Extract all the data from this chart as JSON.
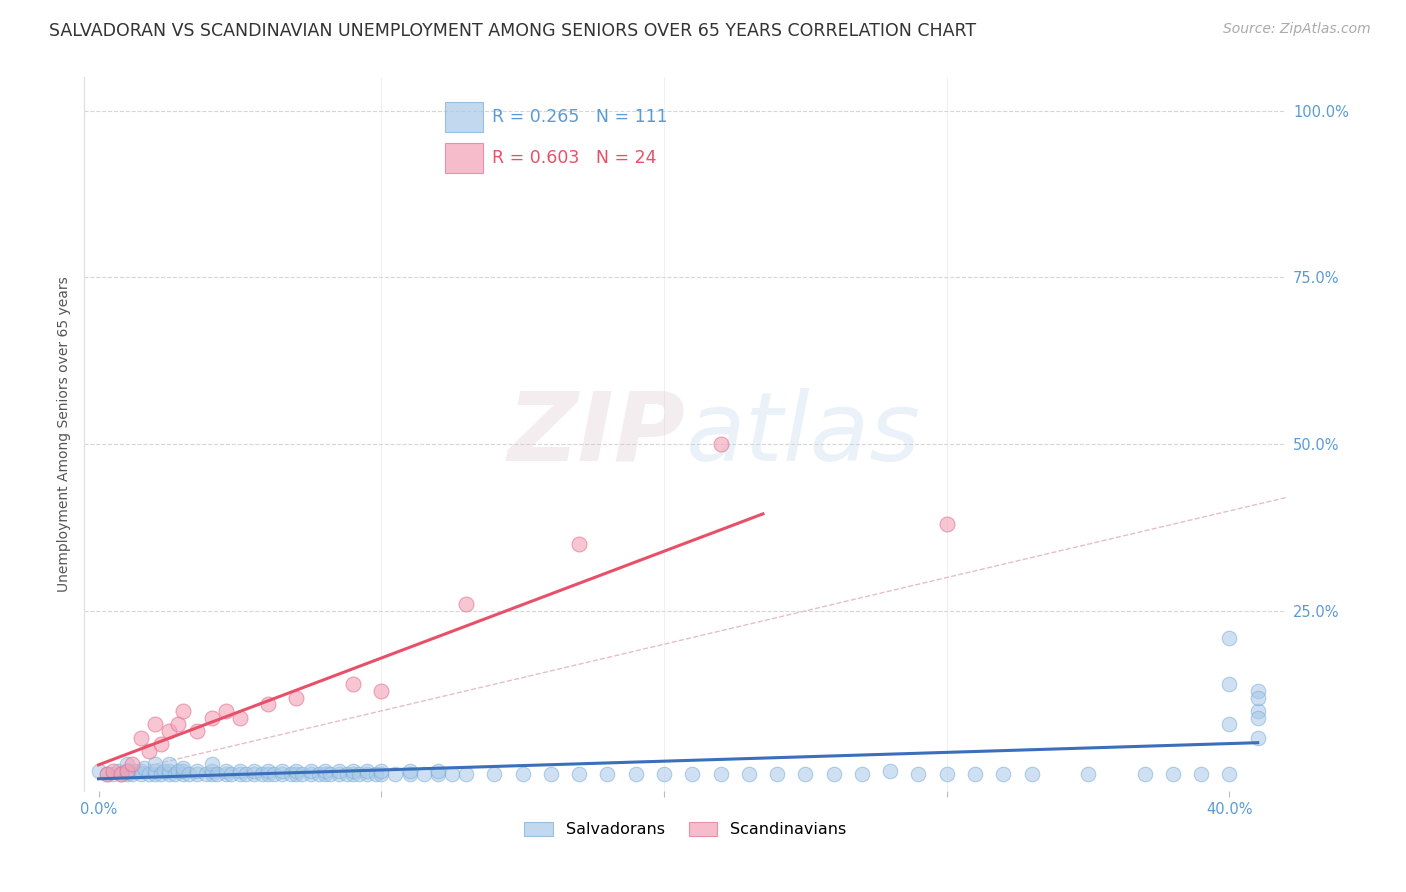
{
  "title": "SALVADORAN VS SCANDINAVIAN UNEMPLOYMENT AMONG SENIORS OVER 65 YEARS CORRELATION CHART",
  "source": "Source: ZipAtlas.com",
  "ylabel": "Unemployment Among Seniors over 65 years",
  "salvadoran_R": 0.265,
  "salvadoran_N": 111,
  "scandinavian_R": 0.603,
  "scandinavian_N": 24,
  "salvadoran_color": "#a8c8e8",
  "scandinavian_color": "#f4a0b5",
  "salvadoran_line_color": "#3a6fbb",
  "scandinavian_line_color": "#e8506a",
  "diagonal_color": "#e0b8c8",
  "background_color": "#ffffff",
  "title_fontsize": 12.5,
  "source_fontsize": 10,
  "axis_label_fontsize": 10,
  "tick_fontsize": 10.5,
  "watermark_color": "#ddc8d0",
  "xlim": [
    -0.005,
    0.42
  ],
  "ylim": [
    -0.02,
    1.05
  ],
  "sal_x": [
    0.0,
    0.003,
    0.005,
    0.007,
    0.008,
    0.01,
    0.01,
    0.01,
    0.012,
    0.013,
    0.015,
    0.015,
    0.016,
    0.018,
    0.02,
    0.02,
    0.02,
    0.022,
    0.023,
    0.025,
    0.025,
    0.025,
    0.027,
    0.028,
    0.03,
    0.03,
    0.03,
    0.032,
    0.035,
    0.035,
    0.038,
    0.04,
    0.04,
    0.04,
    0.042,
    0.045,
    0.045,
    0.047,
    0.05,
    0.05,
    0.052,
    0.055,
    0.055,
    0.058,
    0.06,
    0.06,
    0.062,
    0.065,
    0.065,
    0.068,
    0.07,
    0.07,
    0.072,
    0.075,
    0.075,
    0.078,
    0.08,
    0.08,
    0.082,
    0.085,
    0.085,
    0.088,
    0.09,
    0.09,
    0.092,
    0.095,
    0.095,
    0.098,
    0.1,
    0.1,
    0.105,
    0.11,
    0.11,
    0.115,
    0.12,
    0.12,
    0.125,
    0.13,
    0.14,
    0.15,
    0.16,
    0.17,
    0.18,
    0.19,
    0.2,
    0.21,
    0.22,
    0.23,
    0.24,
    0.25,
    0.26,
    0.27,
    0.28,
    0.29,
    0.3,
    0.31,
    0.32,
    0.33,
    0.35,
    0.37,
    0.38,
    0.39,
    0.4,
    0.4,
    0.4,
    0.4,
    0.41,
    0.41,
    0.41,
    0.41,
    0.41
  ],
  "sal_y": [
    0.01,
    0.005,
    0.005,
    0.01,
    0.005,
    0.005,
    0.01,
    0.02,
    0.005,
    0.01,
    0.005,
    0.01,
    0.015,
    0.005,
    0.005,
    0.01,
    0.02,
    0.005,
    0.01,
    0.005,
    0.01,
    0.02,
    0.005,
    0.01,
    0.005,
    0.01,
    0.015,
    0.005,
    0.005,
    0.01,
    0.005,
    0.005,
    0.01,
    0.02,
    0.005,
    0.005,
    0.01,
    0.005,
    0.005,
    0.01,
    0.005,
    0.005,
    0.01,
    0.005,
    0.005,
    0.01,
    0.005,
    0.005,
    0.01,
    0.005,
    0.005,
    0.01,
    0.005,
    0.005,
    0.01,
    0.005,
    0.005,
    0.01,
    0.005,
    0.005,
    0.01,
    0.005,
    0.005,
    0.01,
    0.005,
    0.005,
    0.01,
    0.005,
    0.005,
    0.01,
    0.005,
    0.005,
    0.01,
    0.005,
    0.005,
    0.01,
    0.005,
    0.005,
    0.005,
    0.005,
    0.005,
    0.005,
    0.005,
    0.005,
    0.005,
    0.005,
    0.005,
    0.005,
    0.005,
    0.005,
    0.005,
    0.005,
    0.01,
    0.005,
    0.005,
    0.005,
    0.005,
    0.005,
    0.005,
    0.005,
    0.005,
    0.005,
    0.005,
    0.08,
    0.14,
    0.21,
    0.1,
    0.13,
    0.06,
    0.09,
    0.12
  ],
  "scan_x": [
    0.003,
    0.005,
    0.008,
    0.01,
    0.012,
    0.015,
    0.018,
    0.02,
    0.022,
    0.025,
    0.028,
    0.03,
    0.035,
    0.04,
    0.045,
    0.05,
    0.06,
    0.07,
    0.09,
    0.1,
    0.13,
    0.17,
    0.22,
    0.3
  ],
  "scan_y": [
    0.005,
    0.01,
    0.005,
    0.01,
    0.02,
    0.06,
    0.04,
    0.08,
    0.05,
    0.07,
    0.08,
    0.1,
    0.07,
    0.09,
    0.1,
    0.09,
    0.11,
    0.12,
    0.14,
    0.13,
    0.26,
    0.35,
    0.5,
    0.38
  ]
}
